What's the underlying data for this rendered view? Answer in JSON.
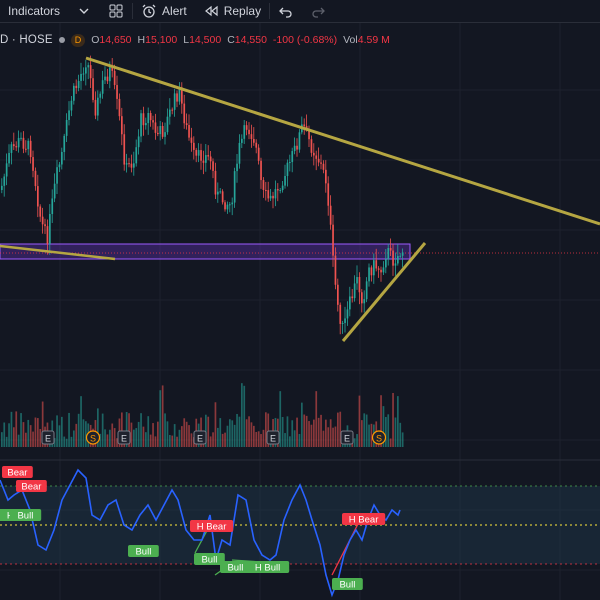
{
  "toolbar": {
    "indicators_label": "Indicators",
    "alert_label": "Alert",
    "replay_label": "Replay"
  },
  "legend": {
    "symbol": "D · HOSE",
    "interval_badge": "D",
    "open_label": "O",
    "open_value": "14,650",
    "high_label": "H",
    "high_value": "15,100",
    "low_label": "L",
    "low_value": "14,500",
    "close_label": "C",
    "close_value": "14,550",
    "change_value": "-100 (-0.68%)",
    "volume_label": "Vol",
    "volume_value": "4.59 M"
  },
  "events": [
    {
      "type": "earnings",
      "label": "E"
    },
    {
      "type": "dividend",
      "label": "S"
    },
    {
      "type": "earnings",
      "label": "E"
    },
    {
      "type": "earnings",
      "label": "E"
    },
    {
      "type": "earnings",
      "label": "E"
    },
    {
      "type": "earnings",
      "label": "E"
    },
    {
      "type": "dividend",
      "label": "S"
    }
  ],
  "divergence_labels": [
    {
      "text": "Bear",
      "kind": "bear"
    },
    {
      "text": "Bear",
      "kind": "bear"
    },
    {
      "text": "H Bull",
      "kind": "bull"
    },
    {
      "text": "Bull",
      "kind": "bull"
    },
    {
      "text": "H Bear",
      "kind": "bear"
    },
    {
      "text": "Bull",
      "kind": "bull"
    },
    {
      "text": "Bull",
      "kind": "bull"
    },
    {
      "text": "Bull",
      "kind": "bull"
    },
    {
      "text": "H Bull",
      "kind": "bull"
    },
    {
      "text": "H Bear",
      "kind": "bear"
    },
    {
      "text": "Bull",
      "kind": "bull"
    }
  ],
  "colors": {
    "background": "#131722",
    "up": "#26a69a",
    "down": "#ef5350",
    "trendline": "#b5a642",
    "zone_fill": "#4a2a8a",
    "zone_border": "#9c5bff",
    "rsi_line": "#2962ff",
    "rsi_band": "#1f3a4d",
    "bull": "#4caf50",
    "bear": "#f23645",
    "midline": "#ffeb3b",
    "overbought": "#4caf50",
    "oversold": "#f23645"
  },
  "icons": [
    "chevron-down-icon",
    "templates-icon",
    "alert-clock-icon",
    "replay-icon",
    "undo-icon",
    "redo-icon"
  ]
}
